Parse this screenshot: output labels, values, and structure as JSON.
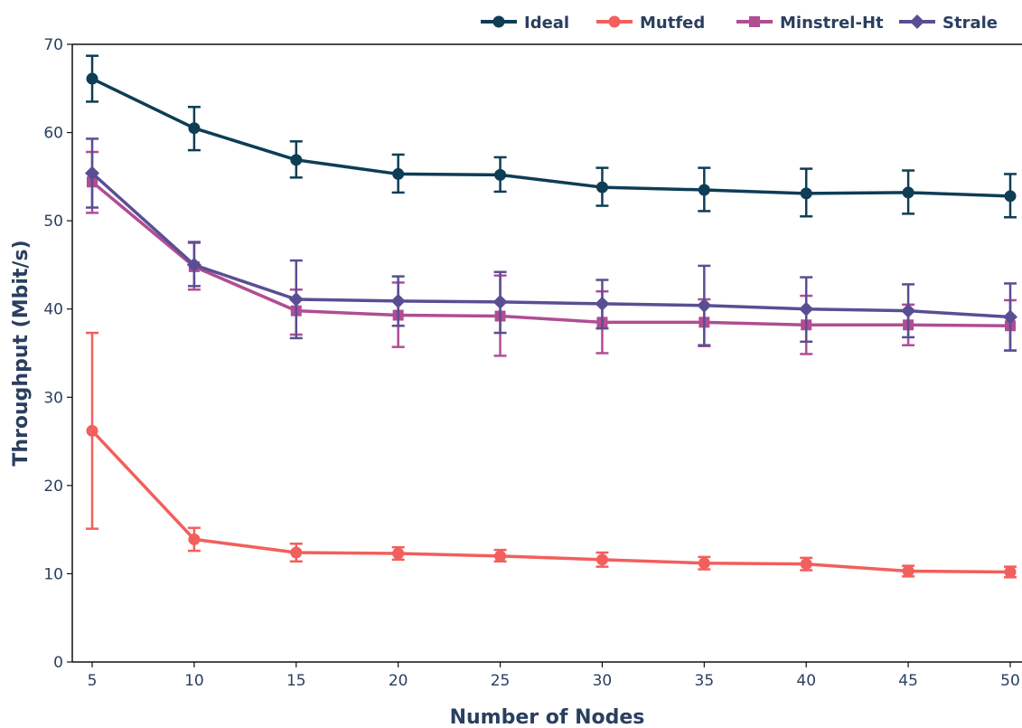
{
  "chart_data": {
    "type": "line",
    "xlabel": "Number of Nodes",
    "ylabel": "Throughput (Mbit/s)",
    "x": [
      5,
      10,
      15,
      20,
      25,
      30,
      35,
      40,
      45,
      50
    ],
    "xticks": [
      "5",
      "10",
      "15",
      "20",
      "25",
      "30",
      "35",
      "40",
      "45",
      "50"
    ],
    "ylim": [
      0,
      70
    ],
    "yticks": [
      "0",
      "10",
      "20",
      "30",
      "40",
      "50",
      "60",
      "70"
    ],
    "grid": false,
    "legend_position": "top-right",
    "series": [
      {
        "name": "Ideal",
        "color": "#0e3d55",
        "marker": "circle",
        "values": [
          66.1,
          60.5,
          56.9,
          55.3,
          55.2,
          53.8,
          53.5,
          53.1,
          53.2,
          52.8
        ],
        "error_low": [
          63.5,
          58.0,
          54.9,
          53.2,
          53.3,
          51.7,
          51.1,
          50.5,
          50.8,
          50.4
        ],
        "error_high": [
          68.7,
          62.9,
          59.0,
          57.5,
          57.2,
          56.0,
          56.0,
          55.9,
          55.7,
          55.3
        ]
      },
      {
        "name": "Mutfed",
        "color": "#f25f5c",
        "marker": "circle",
        "values": [
          26.2,
          13.9,
          12.4,
          12.3,
          12.0,
          11.6,
          11.2,
          11.1,
          10.3,
          10.2
        ],
        "error_low": [
          15.1,
          12.6,
          11.4,
          11.6,
          11.4,
          10.8,
          10.5,
          10.4,
          9.7,
          9.6
        ],
        "error_high": [
          37.3,
          15.2,
          13.4,
          13.0,
          12.7,
          12.4,
          11.9,
          11.8,
          10.9,
          10.8
        ]
      },
      {
        "name": "Minstrel-Ht",
        "color": "#b04d94",
        "marker": "square",
        "values": [
          54.4,
          44.8,
          39.8,
          39.3,
          39.2,
          38.5,
          38.5,
          38.2,
          38.2,
          38.1
        ],
        "error_low": [
          50.9,
          42.2,
          37.1,
          35.7,
          34.7,
          35.0,
          35.8,
          34.9,
          35.9,
          35.3
        ],
        "error_high": [
          57.8,
          47.5,
          42.2,
          43.0,
          43.8,
          42.0,
          41.1,
          41.5,
          40.5,
          41.0
        ]
      },
      {
        "name": "Strale",
        "color": "#5a4e93",
        "marker": "diamond",
        "values": [
          55.4,
          45.0,
          41.1,
          40.9,
          40.8,
          40.6,
          40.4,
          40.0,
          39.8,
          39.1
        ],
        "error_low": [
          51.5,
          42.6,
          36.7,
          38.1,
          37.3,
          37.8,
          35.9,
          36.3,
          36.8,
          35.3
        ],
        "error_high": [
          59.3,
          47.6,
          45.5,
          43.7,
          44.2,
          43.3,
          44.9,
          43.6,
          42.8,
          42.9
        ]
      }
    ]
  }
}
